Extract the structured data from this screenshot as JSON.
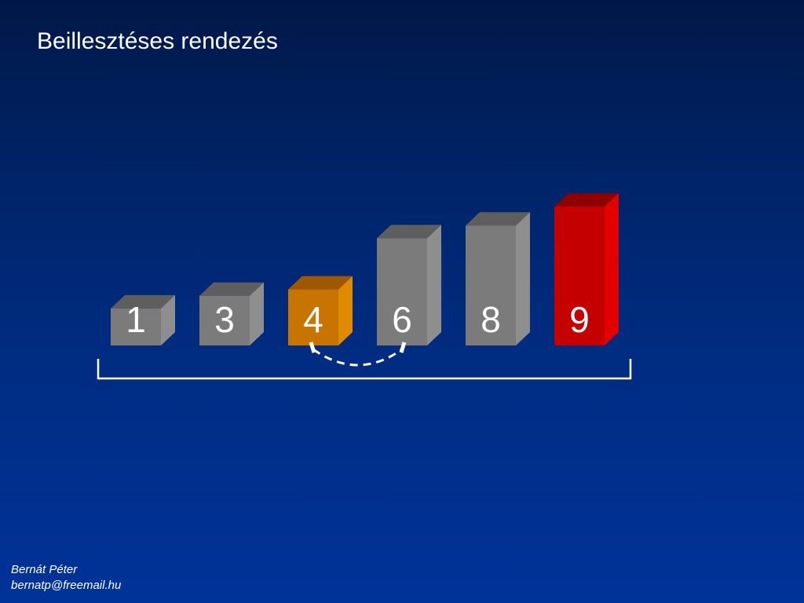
{
  "slide": {
    "title": "Beillesztéses rendezés"
  },
  "bars": [
    {
      "label": "1",
      "value": 1,
      "state": "sorted"
    },
    {
      "label": "3",
      "value": 3,
      "state": "sorted"
    },
    {
      "label": "4",
      "value": 4,
      "state": "current"
    },
    {
      "label": "6",
      "value": 6,
      "state": "sorted"
    },
    {
      "label": "8",
      "value": 8,
      "state": "sorted"
    },
    {
      "label": "9",
      "value": 9,
      "state": "max"
    }
  ],
  "swap_arrow": {
    "from_index": 2,
    "to_index": 3,
    "style": "dashed"
  },
  "colors": {
    "sorted": {
      "front": "#7b7b7b",
      "top": "#5e5e5e",
      "side": "#8e8e8e"
    },
    "current": {
      "front": "#c87400",
      "top": "#a05800",
      "side": "#e08a00"
    },
    "max": {
      "front": "#c40000",
      "top": "#8e0000",
      "side": "#e20000"
    },
    "text": "#ffffff",
    "bracket": "#ffffff"
  },
  "footer": {
    "author": "Bernát Péter",
    "email": "bernatp@freemail.hu"
  }
}
